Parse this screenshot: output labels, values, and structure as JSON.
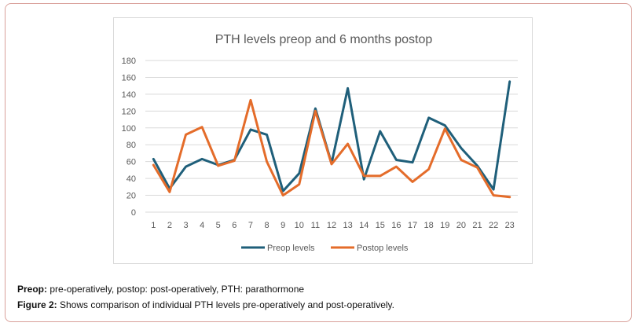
{
  "chart_data": {
    "type": "line",
    "title": "PTH levels preop and 6 months postop",
    "categories": [
      "1",
      "2",
      "3",
      "4",
      "5",
      "6",
      "7",
      "8",
      "9",
      "10",
      "11",
      "12",
      "13",
      "14",
      "15",
      "16",
      "17",
      "18",
      "19",
      "20",
      "21",
      "22",
      "23"
    ],
    "series": [
      {
        "name": "Preop levels",
        "color": "#1f5f7a",
        "values": [
          63,
          28,
          54,
          63,
          56,
          62,
          98,
          92,
          25,
          46,
          123,
          58,
          147,
          39,
          96,
          62,
          59,
          112,
          103,
          76,
          55,
          27,
          155
        ]
      },
      {
        "name": "Postop levels",
        "color": "#e46c2a",
        "values": [
          56,
          24,
          92,
          101,
          55,
          61,
          133,
          60,
          20,
          33,
          120,
          57,
          81,
          43,
          43,
          54,
          36,
          51,
          99,
          62,
          53,
          20,
          18
        ]
      }
    ],
    "yticks": [
      0,
      20,
      40,
      60,
      80,
      100,
      120,
      140,
      160,
      180
    ],
    "ylim": [
      0,
      180
    ],
    "grid": true,
    "legend": "bottom"
  },
  "captions": {
    "line1_bold": "Preop:",
    "line1_text": " pre-operatively, postop: post-operatively, PTH: parathormone",
    "line2_bold": "Figure 2:",
    "line2_text": " Shows comparison of individual PTH levels pre-operatively and post-operatively."
  }
}
